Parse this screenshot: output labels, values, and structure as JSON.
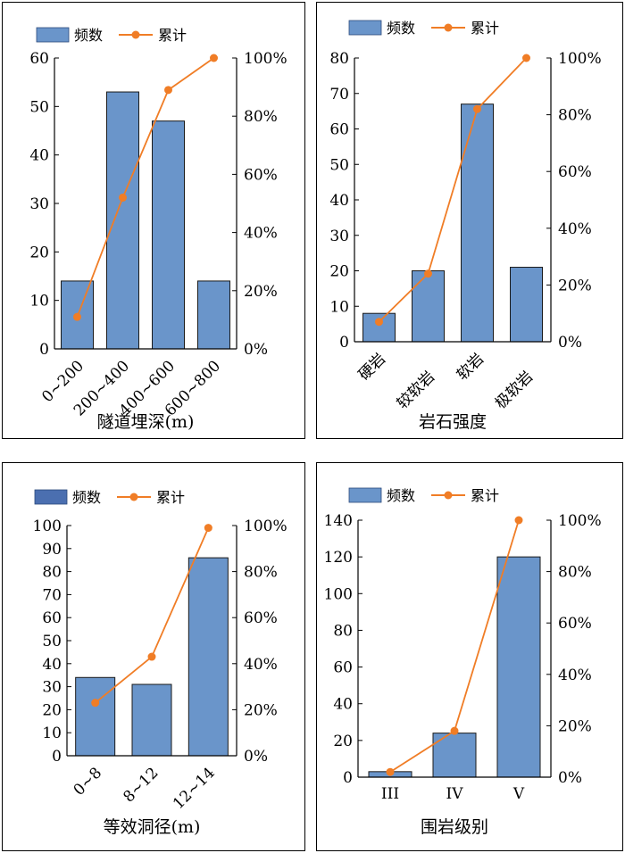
{
  "legend": {
    "bar_label": "频数",
    "line_label": "累计"
  },
  "colors": {
    "bar": "#6a95ca",
    "bar_dark": "#4b6fb0",
    "line": "#f07d26",
    "axis": "#000000"
  },
  "chart_data": [
    {
      "type": "bar",
      "xlabel": "隧道埋深(m)",
      "categories": [
        "0~200",
        "200~400",
        "400~600",
        "600~800"
      ],
      "category_rows": [
        0,
        0,
        0,
        0
      ],
      "label_rotate": true,
      "ylim": [
        0,
        60
      ],
      "yticks": [
        "0",
        "10",
        "20",
        "30",
        "40",
        "50",
        "60"
      ],
      "y2ticks": [
        "0%",
        "20%",
        "40%",
        "60%",
        "80%",
        "100%"
      ],
      "series": [
        {
          "name": "频数",
          "type": "bar",
          "values": [
            14,
            53,
            47,
            14
          ]
        },
        {
          "name": "累计",
          "type": "line",
          "axis": "right",
          "values": [
            0.11,
            0.52,
            0.89,
            1.0
          ]
        }
      ]
    },
    {
      "type": "bar",
      "xlabel": "岩石强度",
      "categories": [
        "硬岩",
        "较软岩",
        "软岩",
        "极软岩"
      ],
      "category_rows": [
        0,
        1,
        0,
        1
      ],
      "label_rotate": true,
      "ylim": [
        0,
        80
      ],
      "yticks": [
        "0",
        "10",
        "20",
        "30",
        "40",
        "50",
        "60",
        "70",
        "80"
      ],
      "y2ticks": [
        "0%",
        "20%",
        "40%",
        "60%",
        "80%",
        "100%"
      ],
      "series": [
        {
          "name": "频数",
          "type": "bar",
          "values": [
            8,
            20,
            67,
            21
          ]
        },
        {
          "name": "累计",
          "type": "line",
          "axis": "right",
          "values": [
            0.07,
            0.24,
            0.82,
            1.0
          ]
        }
      ]
    },
    {
      "type": "bar",
      "xlabel": "等效洞径(m)",
      "categories": [
        "0~8",
        "8~12",
        "12~14"
      ],
      "category_rows": [
        0,
        0,
        0
      ],
      "label_rotate": true,
      "ylim": [
        0,
        100
      ],
      "yticks": [
        "0",
        "10",
        "20",
        "30",
        "40",
        "50",
        "60",
        "70",
        "80",
        "90",
        "100"
      ],
      "y2ticks": [
        "0%",
        "20%",
        "40%",
        "60%",
        "80%",
        "100%"
      ],
      "series": [
        {
          "name": "频数",
          "type": "bar",
          "values": [
            34,
            31,
            86
          ]
        },
        {
          "name": "累计",
          "type": "line",
          "axis": "right",
          "values": [
            0.23,
            0.43,
            0.99
          ]
        }
      ]
    },
    {
      "type": "bar",
      "xlabel": "围岩级别",
      "categories": [
        "III",
        "IV",
        "V"
      ],
      "category_rows": [
        0,
        0,
        0
      ],
      "label_rotate": false,
      "ylim": [
        0,
        140
      ],
      "yticks": [
        "0",
        "20",
        "40",
        "60",
        "80",
        "100",
        "120",
        "140"
      ],
      "y2ticks": [
        "0%",
        "20%",
        "40%",
        "60%",
        "80%",
        "100%"
      ],
      "series": [
        {
          "name": "频数",
          "type": "bar",
          "values": [
            3,
            24,
            120
          ]
        },
        {
          "name": "累计",
          "type": "line",
          "axis": "right",
          "values": [
            0.02,
            0.18,
            1.0
          ]
        }
      ]
    }
  ]
}
